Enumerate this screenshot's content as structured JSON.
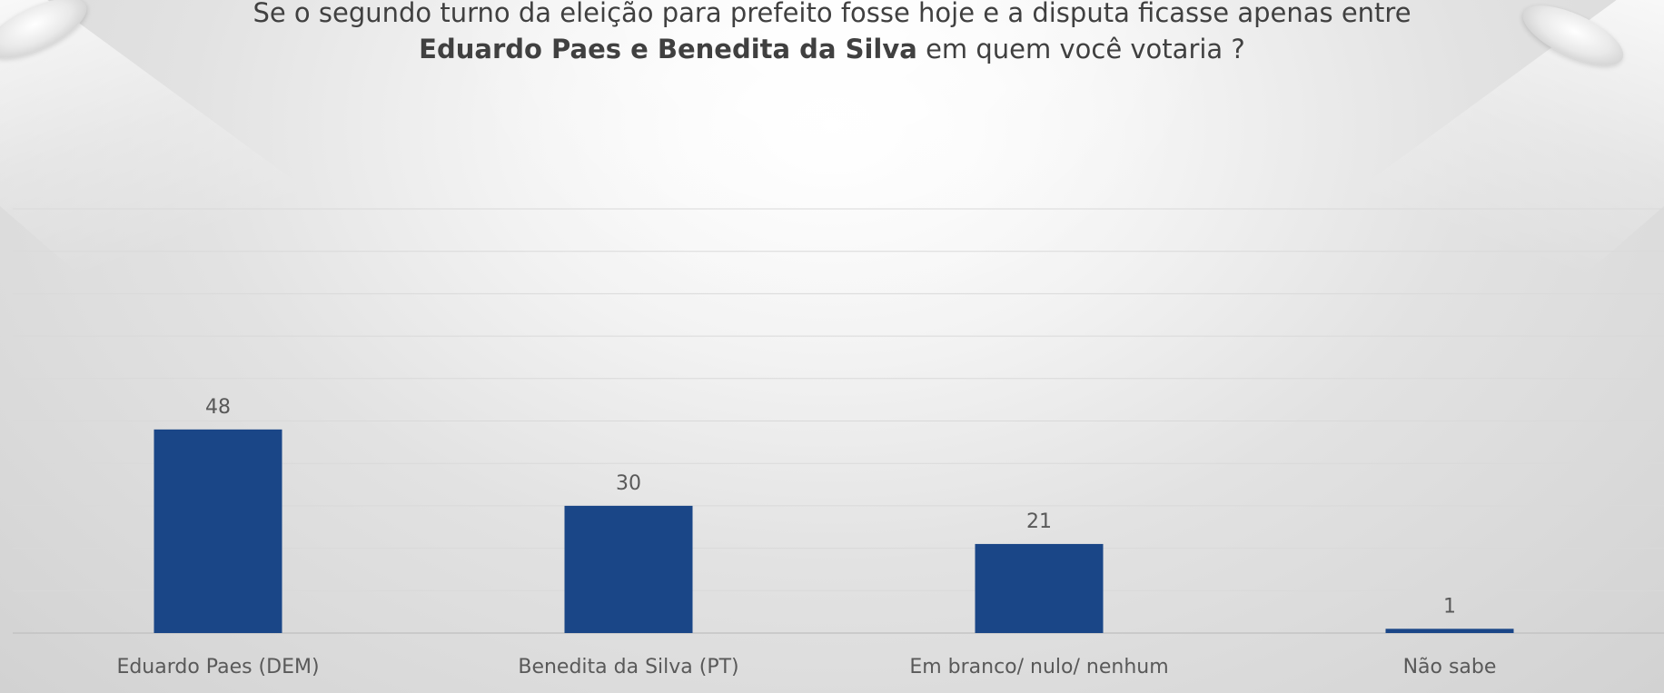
{
  "title": {
    "line1": "Se o segundo turno da eleição para prefeito fosse hoje e a disputa ficasse apenas entre",
    "line2_bold": "Eduardo Paes e Benedita da Silva",
    "line2_rest": " em quem você votaria ?"
  },
  "colors": {
    "bar": "#1a4687",
    "label": "#595959",
    "grid": "#d9d9d9"
  },
  "chart_data": {
    "type": "bar",
    "categories": [
      "Eduardo Paes (DEM)",
      "Benedita da Silva (PT)",
      "Em branco/ nulo/ nenhum",
      "Não sabe"
    ],
    "values": [
      48,
      30,
      21,
      1
    ],
    "title": "",
    "xlabel": "",
    "ylabel": "",
    "ylim": [
      0,
      100
    ],
    "grid": true,
    "data_labels": true,
    "legend": "none"
  }
}
